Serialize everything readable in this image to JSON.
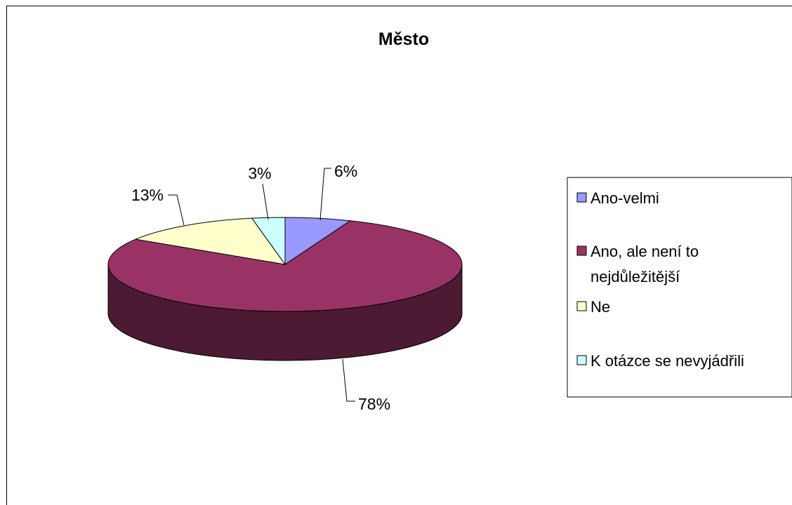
{
  "chart_data": {
    "type": "pie",
    "title": "Město",
    "style": "3d-exploded-none",
    "slices": [
      {
        "label": "Ano-velmi",
        "value": 6,
        "display": "6%",
        "color": "#9999ff",
        "side_color": "#4d4d80"
      },
      {
        "label": "Ano, ale není to nejdůležitější",
        "value": 78,
        "display": "78%",
        "color": "#993366",
        "side_color": "#4d1a33"
      },
      {
        "label": "Ne",
        "value": 13,
        "display": "13%",
        "color": "#ffffcc",
        "side_color": "#808066"
      },
      {
        "label": "K otázce se nevyjádřili",
        "value": 3,
        "display": "3%",
        "color": "#ccffff",
        "side_color": "#668080"
      }
    ],
    "legend": {
      "placement": "right",
      "lines": [
        [
          "Ano-velmi"
        ],
        [
          "Ano, ale není to",
          "nejdůležitější"
        ],
        [
          "Ne"
        ],
        [
          "K otázce se nevyjádřili"
        ]
      ]
    }
  }
}
